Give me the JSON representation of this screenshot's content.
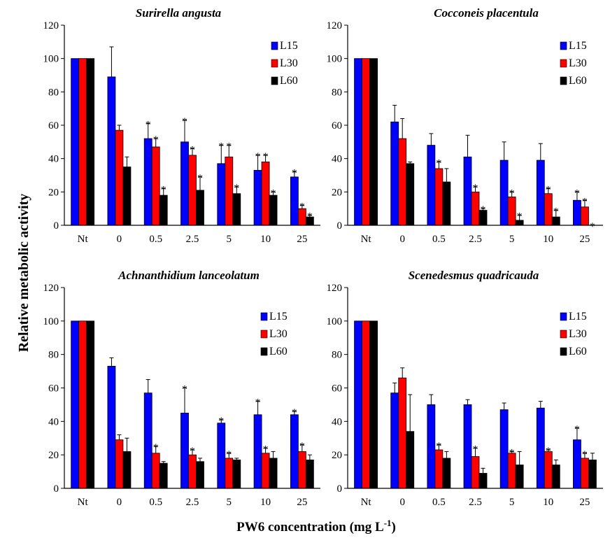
{
  "figure": {
    "ylabel": "Relative metabolic activity",
    "xlabel": "PW6 concentration (mg L",
    "xlabel_sup": "-1",
    "xlabel_end": ")"
  },
  "chart_data": [
    {
      "type": "bar",
      "title": "Surirella angusta",
      "categories": [
        "Nt",
        "0",
        "0.5",
        "2.5",
        "5",
        "10",
        "25"
      ],
      "ylim": [
        0,
        120
      ],
      "yticks": [
        0,
        20,
        40,
        60,
        80,
        100,
        120
      ],
      "legend_position": "top-right",
      "series": [
        {
          "name": "L15",
          "color": "#0000ff",
          "values": [
            100,
            89,
            52,
            50,
            37,
            33,
            29
          ],
          "errors": [
            0,
            18,
            9,
            13,
            11,
            9,
            3
          ],
          "significant": [
            false,
            false,
            true,
            true,
            true,
            true,
            true
          ]
        },
        {
          "name": "L30",
          "color": "#ff0000",
          "values": [
            100,
            57,
            47,
            42,
            41,
            38,
            10
          ],
          "errors": [
            0,
            3,
            5,
            4,
            7,
            4,
            2
          ],
          "significant": [
            false,
            false,
            true,
            true,
            true,
            true,
            true
          ]
        },
        {
          "name": "L60",
          "color": "#000000",
          "values": [
            100,
            35,
            18,
            21,
            19,
            18,
            5
          ],
          "errors": [
            0,
            6,
            4,
            8,
            4,
            2,
            1
          ],
          "significant": [
            false,
            false,
            true,
            true,
            true,
            true,
            true
          ]
        }
      ]
    },
    {
      "type": "bar",
      "title": "Cocconeis placentula",
      "categories": [
        "Nt",
        "0",
        "0.5",
        "2.5",
        "5",
        "10",
        "25"
      ],
      "ylim": [
        0,
        120
      ],
      "yticks": [
        0,
        20,
        40,
        60,
        80,
        100,
        120
      ],
      "legend_position": "top-right",
      "series": [
        {
          "name": "L15",
          "color": "#0000ff",
          "values": [
            100,
            62,
            48,
            41,
            39,
            39,
            15
          ],
          "errors": [
            0,
            10,
            7,
            13,
            11,
            10,
            5
          ],
          "significant": [
            false,
            false,
            false,
            false,
            false,
            false,
            true
          ]
        },
        {
          "name": "L30",
          "color": "#ff0000",
          "values": [
            100,
            52,
            34,
            20,
            17,
            19,
            11
          ],
          "errors": [
            0,
            12,
            4,
            3,
            3,
            3,
            4
          ],
          "significant": [
            false,
            false,
            true,
            true,
            true,
            true,
            true
          ]
        },
        {
          "name": "L60",
          "color": "#000000",
          "values": [
            100,
            37,
            26,
            9,
            3,
            5,
            0
          ],
          "errors": [
            0,
            1,
            8,
            1,
            3,
            4,
            0
          ],
          "significant": [
            false,
            false,
            false,
            true,
            true,
            true,
            true
          ]
        }
      ]
    },
    {
      "type": "bar",
      "title": "Achnanthidium lanceolatum",
      "categories": [
        "Nt",
        "0",
        "0.5",
        "2.5",
        "5",
        "10",
        "25"
      ],
      "ylim": [
        0,
        120
      ],
      "yticks": [
        0,
        20,
        40,
        60,
        80,
        100,
        120
      ],
      "legend_position": "top-right",
      "series": [
        {
          "name": "L15",
          "color": "#0000ff",
          "values": [
            100,
            73,
            57,
            45,
            39,
            44,
            44
          ],
          "errors": [
            0,
            5,
            8,
            15,
            2,
            8,
            2
          ],
          "significant": [
            false,
            false,
            false,
            true,
            true,
            true,
            true
          ]
        },
        {
          "name": "L30",
          "color": "#ff0000",
          "values": [
            100,
            29,
            21,
            20,
            18,
            21,
            22
          ],
          "errors": [
            0,
            3,
            4,
            3,
            3,
            3,
            4
          ],
          "significant": [
            false,
            false,
            true,
            true,
            true,
            true,
            true
          ]
        },
        {
          "name": "L60",
          "color": "#000000",
          "values": [
            100,
            22,
            15,
            16,
            17,
            18,
            17
          ],
          "errors": [
            0,
            8,
            1,
            2,
            1,
            4,
            3
          ],
          "significant": [
            false,
            false,
            false,
            false,
            false,
            false,
            false
          ]
        }
      ]
    },
    {
      "type": "bar",
      "title": "Scenedesmus quadricauda",
      "categories": [
        "Nt",
        "0",
        "0.5",
        "2.5",
        "5",
        "10",
        "25"
      ],
      "ylim": [
        0,
        120
      ],
      "yticks": [
        0,
        20,
        40,
        60,
        80,
        100,
        120
      ],
      "legend_position": "top-right",
      "series": [
        {
          "name": "L15",
          "color": "#0000ff",
          "values": [
            100,
            57,
            50,
            50,
            47,
            48,
            29
          ],
          "errors": [
            0,
            6,
            6,
            3,
            4,
            4,
            7
          ],
          "significant": [
            false,
            false,
            false,
            false,
            false,
            false,
            true
          ]
        },
        {
          "name": "L30",
          "color": "#ff0000",
          "values": [
            100,
            66,
            23,
            19,
            21,
            22,
            18
          ],
          "errors": [
            0,
            6,
            3,
            5,
            1,
            1,
            3
          ],
          "significant": [
            false,
            false,
            true,
            true,
            true,
            true,
            true
          ]
        },
        {
          "name": "L60",
          "color": "#000000",
          "values": [
            100,
            34,
            18,
            9,
            14,
            14,
            17
          ],
          "errors": [
            0,
            22,
            4,
            3,
            8,
            3,
            4
          ],
          "significant": [
            false,
            false,
            false,
            false,
            false,
            false,
            false
          ]
        }
      ]
    }
  ]
}
